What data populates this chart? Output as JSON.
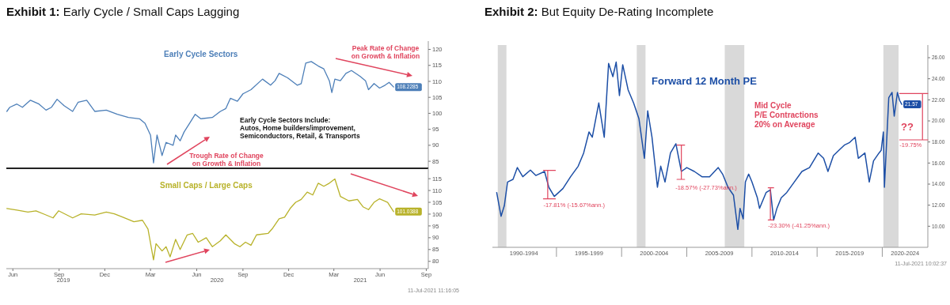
{
  "chart_data": [
    {
      "type": "line",
      "title": "Exhibit 1: Early Cycle / Small Caps Lagging",
      "xlim": [
        "2019-05-19",
        "2021-09-05"
      ],
      "ylim": [
        82.8,
        122.6
      ],
      "yticks": [
        85,
        90,
        95,
        100,
        105,
        110,
        115,
        120
      ],
      "tick_labels": "y",
      "series": [
        {
          "name": "Early Cycle Sectors",
          "color": "#4d7fb8",
          "x": [
            "2019-05-20",
            "2019-05-26",
            "2019-06-09",
            "2019-06-20",
            "2019-07-06",
            "2019-07-23",
            "2019-08-06",
            "2019-08-17",
            "2019-08-28",
            "2019-09-11",
            "2019-09-28",
            "2019-10-09",
            "2019-10-26",
            "2019-11-11",
            "2019-12-04",
            "2019-12-26",
            "2020-01-17",
            "2020-02-08",
            "2020-02-19",
            "2020-03-01",
            "2020-03-07",
            "2020-03-14",
            "2020-03-24",
            "2020-04-01",
            "2020-04-15",
            "2020-04-20",
            "2020-04-29",
            "2020-05-07",
            "2020-05-18",
            "2020-05-29",
            "2020-06-09",
            "2020-07-02",
            "2020-07-18",
            "2020-07-29",
            "2020-08-07",
            "2020-08-21",
            "2020-09-01",
            "2020-09-17",
            "2020-10-10",
            "2020-10-26",
            "2020-11-04",
            "2020-11-12",
            "2020-11-29",
            "2020-12-18",
            "2020-12-26",
            "2021-01-04",
            "2021-01-15",
            "2021-01-29",
            "2021-02-09",
            "2021-02-20",
            "2021-02-25",
            "2021-03-03",
            "2021-03-14",
            "2021-03-25",
            "2021-04-05",
            "2021-04-22",
            "2021-05-03",
            "2021-05-09",
            "2021-05-20",
            "2021-05-31",
            "2021-06-11",
            "2021-06-19",
            "2021-06-28"
          ],
          "values": [
            100.6,
            101.9,
            102.9,
            101.9,
            104.1,
            102.9,
            101.0,
            101.9,
            104.4,
            102.4,
            100.6,
            103.5,
            104.1,
            100.6,
            101.0,
            99.7,
            98.7,
            98.3,
            96.9,
            93.2,
            84.5,
            93.2,
            86.8,
            90.9,
            90.0,
            93.2,
            91.4,
            94.2,
            96.9,
            99.7,
            98.3,
            98.7,
            100.6,
            101.5,
            104.7,
            103.8,
            106.1,
            107.4,
            110.7,
            108.8,
            110.2,
            112.5,
            111.1,
            108.8,
            109.3,
            115.7,
            116.2,
            114.8,
            113.9,
            110.2,
            106.5,
            110.7,
            110.2,
            112.5,
            113.4,
            111.6,
            110.2,
            107.4,
            109.3,
            107.9,
            108.8,
            109.7,
            108.2285
          ],
          "value_labels": [
            null,
            null,
            null,
            null,
            null,
            null,
            null,
            null,
            null,
            null,
            null,
            null,
            null,
            null,
            null,
            null,
            null,
            null,
            null,
            null,
            null,
            null,
            null,
            null,
            null,
            null,
            null,
            null,
            null,
            null,
            null,
            null,
            null,
            null,
            null,
            null,
            null,
            null,
            null,
            null,
            null,
            null,
            null,
            null,
            null,
            null,
            null,
            null,
            null,
            null,
            null,
            null,
            null,
            null,
            null,
            null,
            null,
            null,
            null,
            null,
            null,
            null,
            "108.2285"
          ]
        }
      ],
      "annotations": [
        "Peak Rate of Change\non Growth & Inflation",
        "Trough Rate of Change\non Growth & Inflation",
        "Early Cycle Sectors Include:\nAutos, Home builders/improvement,\nSemiconductors, Retail, & Transports"
      ]
    },
    {
      "type": "line",
      "xlim": [
        "2019-05-19",
        "2021-09-05"
      ],
      "ylim": [
        76.9,
        119.4
      ],
      "yticks": [
        80,
        85,
        90,
        95,
        100,
        105,
        110,
        115
      ],
      "xticks": [
        {
          "value": "2019-06-01",
          "label": "Jun"
        },
        {
          "value": "2019-09-01",
          "label": "Sep"
        },
        {
          "value": "2019-12-01",
          "label": "Dec"
        },
        {
          "value": "2020-03-01",
          "label": "Mar"
        },
        {
          "value": "2020-06-01",
          "label": "Jun"
        },
        {
          "value": "2020-09-01",
          "label": "Sep"
        },
        {
          "value": "2020-12-01",
          "label": "Dec"
        },
        {
          "value": "2021-03-01",
          "label": "Mar"
        },
        {
          "value": "2021-06-01",
          "label": "Jun"
        },
        {
          "value": "2021-09-01",
          "label": "Sep"
        }
      ],
      "series": [
        {
          "name": "Small Caps / Large Caps",
          "color": "#b8b22a",
          "x": [
            "2019-05-20",
            "2019-06-09",
            "2019-07-01",
            "2019-07-17",
            "2019-08-03",
            "2019-08-20",
            "2019-08-31",
            "2019-09-28",
            "2019-10-15",
            "2019-11-11",
            "2019-12-04",
            "2019-12-20",
            "2020-01-06",
            "2020-01-28",
            "2020-02-14",
            "2020-02-25",
            "2020-03-07",
            "2020-03-12",
            "2020-03-24",
            "2020-04-01",
            "2020-04-09",
            "2020-04-20",
            "2020-04-29",
            "2020-05-13",
            "2020-05-24",
            "2020-06-04",
            "2020-06-20",
            "2020-07-02",
            "2020-07-18",
            "2020-07-29",
            "2020-08-15",
            "2020-08-26",
            "2020-09-06",
            "2020-09-17",
            "2020-09-28",
            "2020-10-21",
            "2020-10-29",
            "2020-11-12",
            "2020-11-23",
            "2020-12-04",
            "2020-12-15",
            "2020-12-26",
            "2021-01-07",
            "2021-01-18",
            "2021-01-29",
            "2021-02-09",
            "2021-02-20",
            "2021-03-03",
            "2021-03-14",
            "2021-03-31",
            "2021-04-17",
            "2021-04-28",
            "2021-05-09",
            "2021-05-20",
            "2021-05-31",
            "2021-06-16",
            "2021-06-28"
          ],
          "values": [
            102.4,
            101.7,
            100.9,
            101.4,
            99.9,
            98.4,
            101.4,
            98.4,
            100.1,
            99.6,
            100.9,
            100.1,
            98.7,
            96.8,
            97.4,
            93.7,
            80.6,
            87.5,
            84.4,
            86.2,
            81.9,
            89.3,
            85.0,
            91.2,
            91.8,
            88.1,
            90.0,
            86.2,
            88.7,
            91.2,
            87.5,
            86.2,
            88.1,
            86.8,
            91.2,
            91.8,
            93.7,
            98.0,
            98.7,
            102.4,
            105.0,
            106.2,
            109.3,
            108.1,
            113.1,
            111.8,
            113.1,
            114.9,
            107.5,
            105.6,
            106.2,
            103.1,
            101.9,
            105.0,
            106.5,
            105.0,
            101.0388
          ],
          "value_labels": [
            null,
            null,
            null,
            null,
            null,
            null,
            null,
            null,
            null,
            null,
            null,
            null,
            null,
            null,
            null,
            null,
            null,
            null,
            null,
            null,
            null,
            null,
            null,
            null,
            null,
            null,
            null,
            null,
            null,
            null,
            null,
            null,
            null,
            null,
            null,
            null,
            null,
            null,
            null,
            null,
            null,
            null,
            null,
            null,
            null,
            null,
            null,
            null,
            null,
            null,
            null,
            null,
            null,
            null,
            null,
            null,
            "101.0388"
          ]
        }
      ],
      "annotations": [
        "2019",
        "2020",
        "2021",
        "11-Jul-2021 11:16:05"
      ]
    },
    {
      "type": "line",
      "title": "Exhibit 2: But Equity De-Rating Incomplete",
      "xlim": [
        "1990-02",
        "2023-07"
      ],
      "ylim": [
        8,
        27.2
      ],
      "yticks": [
        {
          "value": 10,
          "label": "10.00"
        },
        {
          "value": 12,
          "label": "12.00"
        },
        {
          "value": 14,
          "label": "14.00"
        },
        {
          "value": 16,
          "label": "16.00"
        },
        {
          "value": 18,
          "label": "18.00"
        },
        {
          "value": 20,
          "label": "20.00"
        },
        {
          "value": 22,
          "label": "22.00"
        },
        {
          "value": 24,
          "label": "24.00"
        },
        {
          "value": 26,
          "label": "26.00"
        }
      ],
      "xticks": [
        {
          "value": "1995-01",
          "label": null
        },
        {
          "value": "2000-01",
          "label": null
        },
        {
          "value": "2005-01",
          "label": null
        },
        {
          "value": "2010-01",
          "label": null
        },
        {
          "value": "2015-01",
          "label": null
        },
        {
          "value": "2020-01",
          "label": null
        },
        {
          "value": "1992-07",
          "label": "1990-1994"
        },
        {
          "value": "1997-07",
          "label": "1995-1999"
        },
        {
          "value": "2002-07",
          "label": "2000-2004"
        },
        {
          "value": "2007-07",
          "label": "2005-2009"
        },
        {
          "value": "2012-07",
          "label": "2010-2014"
        },
        {
          "value": "2017-07",
          "label": "2015-2019"
        },
        {
          "value": "2021-10",
          "label": "2020-2024"
        }
      ],
      "bands": [
        {
          "axis": "x",
          "from": "1990-07",
          "to": "1991-03",
          "color": "#d9d9d9"
        },
        {
          "axis": "x",
          "from": "2001-03",
          "to": "2001-11",
          "color": "#d9d9d9"
        },
        {
          "axis": "x",
          "from": "2007-12",
          "to": "2009-06",
          "color": "#d9d9d9"
        },
        {
          "axis": "x",
          "from": "2020-02",
          "to": "2021-04",
          "color": "#d9d9d9"
        }
      ],
      "series": [
        {
          "name": "Forward 12 Month PE",
          "color": "#1d4fa6",
          "x": [
            "1990-06",
            "1990-10",
            "1991-01",
            "1991-04",
            "1991-09",
            "1992-01",
            "1992-06",
            "1993-01",
            "1993-06",
            "1994-02",
            "1994-06",
            "1994-11",
            "1995-07",
            "1996-02",
            "1996-09",
            "1997-02",
            "1997-07",
            "1997-10",
            "1998-04",
            "1998-09",
            "1999-01",
            "1999-05",
            "1999-08",
            "1999-11",
            "2000-02",
            "2000-07",
            "2000-12",
            "2001-05",
            "2001-10",
            "2002-01",
            "2002-05",
            "2002-10",
            "2003-01",
            "2003-05",
            "2003-10",
            "2004-03",
            "2004-08",
            "2005-01",
            "2005-08",
            "2006-03",
            "2006-10",
            "2007-06",
            "2007-10",
            "2008-03",
            "2008-08",
            "2008-12",
            "2009-02",
            "2009-05",
            "2009-07",
            "2009-10",
            "2010-01",
            "2010-06",
            "2010-08",
            "2011-02",
            "2011-06",
            "2011-09",
            "2011-12",
            "2012-04",
            "2012-09",
            "2013-04",
            "2013-11",
            "2014-06",
            "2015-02",
            "2015-07",
            "2015-11",
            "2016-04",
            "2016-09",
            "2017-02",
            "2017-07",
            "2017-12",
            "2018-03",
            "2018-09",
            "2019-01",
            "2019-05",
            "2019-10",
            "2019-12",
            "2020-02",
            "2020-03",
            "2020-07",
            "2020-10",
            "2020-12",
            "2021-03",
            "2021-05",
            "2021-07"
          ],
          "values": [
            13.2,
            10.95,
            11.95,
            14.2,
            14.45,
            15.57,
            14.7,
            15.33,
            14.82,
            15.2,
            13.7,
            12.83,
            13.58,
            14.7,
            15.7,
            16.95,
            18.95,
            18.45,
            21.7,
            18.45,
            25.45,
            24.2,
            25.58,
            22.4,
            25.33,
            22.95,
            21.7,
            20.2,
            16.45,
            20.95,
            18.45,
            13.7,
            15.7,
            14.2,
            16.95,
            17.83,
            15.2,
            15.57,
            15.2,
            14.7,
            14.7,
            15.57,
            14.95,
            13.7,
            12.95,
            9.7,
            11.7,
            10.7,
            14.2,
            14.95,
            14.2,
            12.7,
            11.7,
            13.2,
            13.45,
            10.58,
            11.7,
            12.7,
            13.2,
            14.2,
            15.2,
            15.57,
            16.95,
            16.45,
            15.2,
            16.7,
            17.2,
            17.7,
            17.95,
            18.45,
            16.45,
            16.95,
            14.2,
            16.2,
            16.95,
            17.2,
            18.95,
            13.7,
            22.2,
            22.7,
            20.45,
            22.7,
            21.95,
            21.57
          ],
          "value_labels": [
            null,
            null,
            null,
            null,
            null,
            null,
            null,
            null,
            null,
            null,
            null,
            null,
            null,
            null,
            null,
            null,
            null,
            null,
            null,
            null,
            null,
            null,
            null,
            null,
            null,
            null,
            null,
            null,
            null,
            null,
            null,
            null,
            null,
            null,
            null,
            null,
            null,
            null,
            null,
            null,
            null,
            null,
            null,
            null,
            null,
            null,
            null,
            null,
            null,
            null,
            null,
            null,
            null,
            null,
            null,
            null,
            null,
            null,
            null,
            null,
            null,
            null,
            null,
            null,
            null,
            null,
            null,
            null,
            null,
            null,
            null,
            null,
            null,
            null,
            null,
            null,
            null,
            null,
            null,
            null,
            null,
            null,
            null,
            "21.57"
          ]
        },
        {
          "color": "#e0455e",
          "x": [
            "1994-01",
            "1994-12",
            "1994-05",
            "1994-05",
            "1994-01",
            "1994-12"
          ],
          "values": [
            15.3,
            15.3,
            15.3,
            12.6,
            12.6,
            12.6
          ]
        },
        {
          "color": "#e0455e",
          "x": [
            "2004-04",
            "2004-11",
            "2004-08",
            "2004-08",
            "2004-04",
            "2004-11"
          ],
          "values": [
            17.7,
            17.7,
            17.7,
            14.45,
            14.45,
            14.45
          ]
        },
        {
          "color": "#e0455e",
          "x": [
            "2011-04",
            "2011-09",
            "2011-06",
            "2011-06",
            "2011-04",
            "2011-09"
          ],
          "values": [
            13.65,
            13.65,
            13.65,
            10.6,
            10.6,
            10.6
          ]
        },
        {
          "color": "#e0455e",
          "x": [
            "2021-05",
            "2023-07",
            "2023-02",
            "2023-02",
            "2021-05",
            "2023-07"
          ],
          "values": [
            22.6,
            22.6,
            22.6,
            18.2,
            18.2,
            18.2
          ]
        }
      ],
      "annotations": [
        "Mid Cycle\nP/E Contractions\n20% on Average",
        {
          "text": "-17.81% (-15.67%ann.)",
          "x": "1994-01",
          "y": 12.6
        },
        {
          "text": "-18.57% (-27.73%ann.)",
          "x": "2004-04",
          "y": 14.45
        },
        {
          "text": "-23.30% (-41.25%ann.)",
          "x": "2011-04",
          "y": 10.6
        },
        {
          "text": "-19.75%",
          "x": "2021-05",
          "y": 18.2
        },
        "??",
        "11-Jul-2021 10:02:37"
      ]
    }
  ]
}
